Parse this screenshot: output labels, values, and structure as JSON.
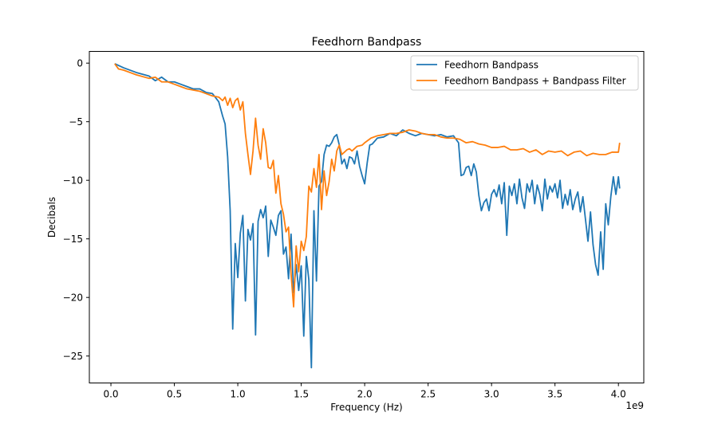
{
  "chart_data": {
    "type": "line",
    "title": "Feedhorn Bandpass",
    "xlabel": "Frequency (Hz)",
    "ylabel": "Decibals",
    "x_offset_label": "1e9",
    "xlim": [
      -0.17,
      4.2
    ],
    "ylim": [
      -27.3,
      1.0
    ],
    "x_ticks": [
      0.0,
      0.5,
      1.0,
      1.5,
      2.0,
      2.5,
      3.0,
      3.5,
      4.0
    ],
    "x_tick_labels": [
      "0.0",
      "0.5",
      "1.0",
      "1.5",
      "2.0",
      "2.5",
      "3.0",
      "3.5",
      "4.0"
    ],
    "y_ticks": [
      0,
      -5,
      -10,
      -15,
      -20,
      -25
    ],
    "y_tick_labels": [
      "0",
      "−5",
      "−10",
      "−15",
      "−20",
      "−25"
    ],
    "grid": false,
    "legend_position": "top-right",
    "series": [
      {
        "name": "Feedhorn Bandpass",
        "color": "#1f77b4",
        "points": [
          [
            0.03,
            -0.05
          ],
          [
            0.1,
            -0.4
          ],
          [
            0.2,
            -0.8
          ],
          [
            0.3,
            -1.1
          ],
          [
            0.35,
            -1.5
          ],
          [
            0.4,
            -1.2
          ],
          [
            0.45,
            -1.6
          ],
          [
            0.5,
            -1.6
          ],
          [
            0.55,
            -1.8
          ],
          [
            0.6,
            -2.0
          ],
          [
            0.65,
            -2.2
          ],
          [
            0.7,
            -2.2
          ],
          [
            0.75,
            -2.5
          ],
          [
            0.8,
            -2.6
          ],
          [
            0.85,
            -3.3
          ],
          [
            0.88,
            -4.5
          ],
          [
            0.9,
            -5.2
          ],
          [
            0.92,
            -8.0
          ],
          [
            0.94,
            -12.6
          ],
          [
            0.96,
            -22.7
          ],
          [
            0.98,
            -15.4
          ],
          [
            1.0,
            -18.3
          ],
          [
            1.02,
            -14.5
          ],
          [
            1.04,
            -13.0
          ],
          [
            1.06,
            -20.3
          ],
          [
            1.08,
            -14.2
          ],
          [
            1.1,
            -15.1
          ],
          [
            1.12,
            -13.7
          ],
          [
            1.14,
            -23.2
          ],
          [
            1.16,
            -13.5
          ],
          [
            1.18,
            -12.5
          ],
          [
            1.2,
            -13.2
          ],
          [
            1.22,
            -12.2
          ],
          [
            1.24,
            -16.5
          ],
          [
            1.26,
            -13.4
          ],
          [
            1.28,
            -14.0
          ],
          [
            1.3,
            -14.7
          ],
          [
            1.32,
            -13.0
          ],
          [
            1.34,
            -12.6
          ],
          [
            1.36,
            -16.3
          ],
          [
            1.38,
            -15.7
          ],
          [
            1.4,
            -18.4
          ],
          [
            1.42,
            -14.6
          ],
          [
            1.44,
            -19.6
          ],
          [
            1.46,
            -17.2
          ],
          [
            1.48,
            -19.4
          ],
          [
            1.5,
            -17.3
          ],
          [
            1.52,
            -23.3
          ],
          [
            1.54,
            -16.5
          ],
          [
            1.56,
            -18.5
          ],
          [
            1.58,
            -26.0
          ],
          [
            1.6,
            -12.6
          ],
          [
            1.62,
            -18.6
          ],
          [
            1.64,
            -10.5
          ],
          [
            1.66,
            -10.1
          ],
          [
            1.68,
            -7.8
          ],
          [
            1.7,
            -7.0
          ],
          [
            1.72,
            -7.1
          ],
          [
            1.74,
            -6.8
          ],
          [
            1.76,
            -6.3
          ],
          [
            1.78,
            -6.1
          ],
          [
            1.8,
            -7.0
          ],
          [
            1.82,
            -8.6
          ],
          [
            1.84,
            -8.2
          ],
          [
            1.86,
            -9.0
          ],
          [
            1.88,
            -8.0
          ],
          [
            1.9,
            -8.1
          ],
          [
            1.92,
            -8.6
          ],
          [
            1.94,
            -7.5
          ],
          [
            1.96,
            -8.8
          ],
          [
            1.98,
            -9.6
          ],
          [
            2.0,
            -10.3
          ],
          [
            2.02,
            -8.5
          ],
          [
            2.04,
            -7.0
          ],
          [
            2.06,
            -6.9
          ],
          [
            2.1,
            -6.4
          ],
          [
            2.15,
            -6.3
          ],
          [
            2.2,
            -6.0
          ],
          [
            2.25,
            -6.2
          ],
          [
            2.3,
            -5.7
          ],
          [
            2.35,
            -6.0
          ],
          [
            2.4,
            -6.2
          ],
          [
            2.45,
            -6.0
          ],
          [
            2.5,
            -6.1
          ],
          [
            2.55,
            -6.2
          ],
          [
            2.6,
            -6.1
          ],
          [
            2.65,
            -6.3
          ],
          [
            2.7,
            -6.2
          ],
          [
            2.74,
            -6.8
          ],
          [
            2.76,
            -9.6
          ],
          [
            2.78,
            -9.5
          ],
          [
            2.8,
            -8.9
          ],
          [
            2.82,
            -8.8
          ],
          [
            2.84,
            -9.6
          ],
          [
            2.86,
            -8.6
          ],
          [
            2.88,
            -9.3
          ],
          [
            2.9,
            -11.3
          ],
          [
            2.92,
            -12.6
          ],
          [
            2.94,
            -11.9
          ],
          [
            2.96,
            -11.6
          ],
          [
            2.98,
            -12.6
          ],
          [
            3.0,
            -11.2
          ],
          [
            3.02,
            -10.8
          ],
          [
            3.04,
            -11.4
          ],
          [
            3.06,
            -10.4
          ],
          [
            3.08,
            -12.0
          ],
          [
            3.1,
            -10.2
          ],
          [
            3.12,
            -14.7
          ],
          [
            3.14,
            -10.5
          ],
          [
            3.16,
            -11.3
          ],
          [
            3.18,
            -10.3
          ],
          [
            3.2,
            -12.0
          ],
          [
            3.22,
            -9.9
          ],
          [
            3.24,
            -11.5
          ],
          [
            3.26,
            -12.4
          ],
          [
            3.28,
            -10.3
          ],
          [
            3.3,
            -11.0
          ],
          [
            3.32,
            -10.0
          ],
          [
            3.34,
            -12.0
          ],
          [
            3.36,
            -10.4
          ],
          [
            3.38,
            -11.2
          ],
          [
            3.4,
            -12.6
          ],
          [
            3.42,
            -9.9
          ],
          [
            3.44,
            -11.6
          ],
          [
            3.46,
            -10.5
          ],
          [
            3.48,
            -11.0
          ],
          [
            3.5,
            -10.3
          ],
          [
            3.52,
            -11.5
          ],
          [
            3.54,
            -10.0
          ],
          [
            3.56,
            -12.4
          ],
          [
            3.58,
            -11.2
          ],
          [
            3.6,
            -12.1
          ],
          [
            3.62,
            -10.8
          ],
          [
            3.64,
            -12.5
          ],
          [
            3.66,
            -11.6
          ],
          [
            3.68,
            -11.0
          ],
          [
            3.7,
            -12.7
          ],
          [
            3.72,
            -11.4
          ],
          [
            3.74,
            -13.3
          ],
          [
            3.76,
            -15.2
          ],
          [
            3.78,
            -12.7
          ],
          [
            3.8,
            -15.5
          ],
          [
            3.82,
            -17.2
          ],
          [
            3.84,
            -18.1
          ],
          [
            3.86,
            -14.4
          ],
          [
            3.88,
            -17.6
          ],
          [
            3.9,
            -12.0
          ],
          [
            3.92,
            -13.8
          ],
          [
            3.94,
            -11.4
          ],
          [
            3.96,
            -9.7
          ],
          [
            3.98,
            -11.2
          ],
          [
            4.0,
            -9.7
          ],
          [
            4.01,
            -10.7
          ]
        ]
      },
      {
        "name": "Feedhorn Bandpass + Bandpass Filter",
        "color": "#ff7f0e",
        "points": [
          [
            0.03,
            -0.05
          ],
          [
            0.06,
            -0.5
          ],
          [
            0.1,
            -0.6
          ],
          [
            0.15,
            -0.8
          ],
          [
            0.2,
            -1.0
          ],
          [
            0.3,
            -1.3
          ],
          [
            0.35,
            -1.2
          ],
          [
            0.4,
            -1.6
          ],
          [
            0.45,
            -1.6
          ],
          [
            0.5,
            -1.8
          ],
          [
            0.55,
            -2.0
          ],
          [
            0.6,
            -2.2
          ],
          [
            0.65,
            -2.3
          ],
          [
            0.7,
            -2.4
          ],
          [
            0.75,
            -2.6
          ],
          [
            0.8,
            -2.8
          ],
          [
            0.85,
            -2.9
          ],
          [
            0.88,
            -3.2
          ],
          [
            0.9,
            -2.9
          ],
          [
            0.92,
            -3.6
          ],
          [
            0.94,
            -3.0
          ],
          [
            0.96,
            -3.8
          ],
          [
            0.98,
            -3.2
          ],
          [
            1.0,
            -3.0
          ],
          [
            1.02,
            -4.0
          ],
          [
            1.04,
            -3.3
          ],
          [
            1.06,
            -6.0
          ],
          [
            1.08,
            -7.8
          ],
          [
            1.1,
            -9.5
          ],
          [
            1.12,
            -7.5
          ],
          [
            1.14,
            -4.7
          ],
          [
            1.16,
            -7.0
          ],
          [
            1.18,
            -8.2
          ],
          [
            1.2,
            -5.6
          ],
          [
            1.22,
            -6.8
          ],
          [
            1.24,
            -8.9
          ],
          [
            1.26,
            -9.0
          ],
          [
            1.28,
            -8.3
          ],
          [
            1.3,
            -11.1
          ],
          [
            1.32,
            -9.6
          ],
          [
            1.34,
            -12.0
          ],
          [
            1.36,
            -12.9
          ],
          [
            1.38,
            -14.4
          ],
          [
            1.4,
            -14.0
          ],
          [
            1.42,
            -18.0
          ],
          [
            1.44,
            -20.8
          ],
          [
            1.46,
            -15.6
          ],
          [
            1.48,
            -17.8
          ],
          [
            1.5,
            -15.2
          ],
          [
            1.52,
            -16.0
          ],
          [
            1.54,
            -14.8
          ],
          [
            1.56,
            -10.5
          ],
          [
            1.58,
            -11.0
          ],
          [
            1.6,
            -9.0
          ],
          [
            1.62,
            -10.6
          ],
          [
            1.64,
            -7.8
          ],
          [
            1.66,
            -12.5
          ],
          [
            1.68,
            -9.2
          ],
          [
            1.7,
            -11.3
          ],
          [
            1.72,
            -10.1
          ],
          [
            1.74,
            -8.2
          ],
          [
            1.76,
            -9.2
          ],
          [
            1.78,
            -7.5
          ],
          [
            1.8,
            -7.0
          ],
          [
            1.82,
            -7.8
          ],
          [
            1.84,
            -7.6
          ],
          [
            1.86,
            -7.4
          ],
          [
            1.88,
            -7.3
          ],
          [
            1.9,
            -7.5
          ],
          [
            1.94,
            -7.1
          ],
          [
            1.98,
            -7.0
          ],
          [
            2.0,
            -6.8
          ],
          [
            2.05,
            -6.4
          ],
          [
            2.1,
            -6.2
          ],
          [
            2.15,
            -6.1
          ],
          [
            2.2,
            -6.0
          ],
          [
            2.25,
            -6.0
          ],
          [
            2.3,
            -5.9
          ],
          [
            2.35,
            -5.7
          ],
          [
            2.4,
            -5.8
          ],
          [
            2.45,
            -6.0
          ],
          [
            2.5,
            -6.1
          ],
          [
            2.55,
            -6.1
          ],
          [
            2.6,
            -6.3
          ],
          [
            2.65,
            -6.4
          ],
          [
            2.7,
            -6.4
          ],
          [
            2.75,
            -6.5
          ],
          [
            2.8,
            -6.8
          ],
          [
            2.85,
            -6.7
          ],
          [
            2.9,
            -6.9
          ],
          [
            2.95,
            -7.0
          ],
          [
            3.0,
            -7.2
          ],
          [
            3.05,
            -7.2
          ],
          [
            3.1,
            -7.1
          ],
          [
            3.15,
            -7.4
          ],
          [
            3.2,
            -7.4
          ],
          [
            3.25,
            -7.3
          ],
          [
            3.3,
            -7.6
          ],
          [
            3.35,
            -7.4
          ],
          [
            3.4,
            -7.8
          ],
          [
            3.45,
            -7.5
          ],
          [
            3.5,
            -7.6
          ],
          [
            3.55,
            -7.5
          ],
          [
            3.6,
            -7.9
          ],
          [
            3.65,
            -7.6
          ],
          [
            3.7,
            -7.5
          ],
          [
            3.75,
            -7.9
          ],
          [
            3.8,
            -7.7
          ],
          [
            3.85,
            -7.8
          ],
          [
            3.9,
            -7.8
          ],
          [
            3.95,
            -7.6
          ],
          [
            4.0,
            -7.6
          ],
          [
            4.01,
            -6.8
          ]
        ]
      }
    ]
  }
}
